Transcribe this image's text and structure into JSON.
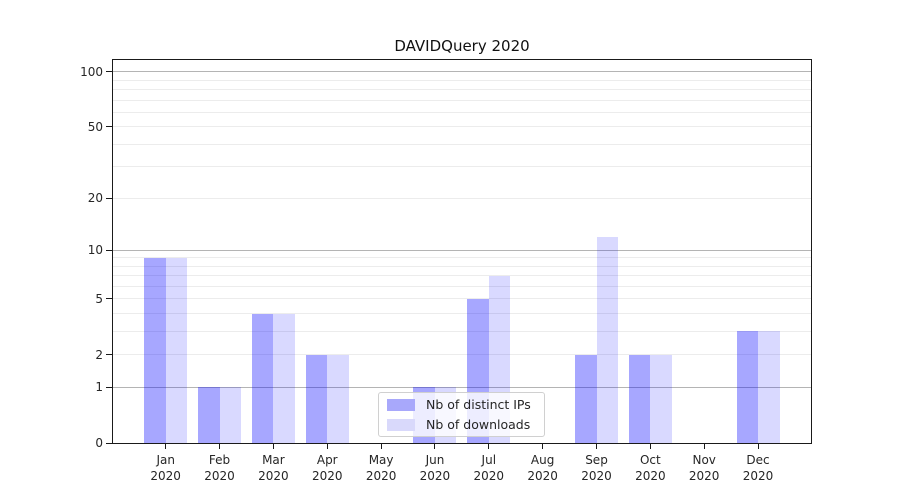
{
  "chart_data": {
    "type": "bar",
    "title": "DAVIDQuery 2020",
    "categories": [
      "Jan",
      "Feb",
      "Mar",
      "Apr",
      "May",
      "Jun",
      "Jul",
      "Aug",
      "Sep",
      "Oct",
      "Nov",
      "Dec"
    ],
    "category_year": "2020",
    "series": [
      {
        "name": "Nb of distinct IPs",
        "color": "rgba(0,0,255,0.345)",
        "swatch_color": "#a8a8fb",
        "values": [
          9,
          1,
          4,
          2,
          0,
          1,
          5,
          0,
          2,
          2,
          0,
          3
        ]
      },
      {
        "name": "Nb of downloads",
        "color": "rgba(0,0,255,0.15)",
        "swatch_color": "#d9d9fb",
        "values": [
          9,
          1,
          4,
          2,
          0,
          1,
          7,
          0,
          12,
          2,
          0,
          3
        ]
      }
    ],
    "y_axis": {
      "scale": "log1p",
      "tick_labels": [
        0,
        1,
        2,
        5,
        10,
        20,
        50,
        100
      ],
      "major_gridlines": [
        1,
        10,
        100
      ],
      "minor_gridlines": [
        2,
        3,
        4,
        5,
        6,
        7,
        8,
        9,
        20,
        30,
        40,
        50,
        60,
        70,
        80,
        90
      ],
      "range_top_value": 115.8,
      "range_bottom_value": 0
    },
    "legend": {
      "position": "lower center"
    },
    "colors": {
      "bar_dark": "rgba(0,0,255,0.345)",
      "bar_light": "rgba(0,0,255,0.15)",
      "major_grid": "#b4b4b4",
      "minor_grid": "#ececec",
      "spine": "#1a1a1a",
      "text": "#262626"
    }
  }
}
